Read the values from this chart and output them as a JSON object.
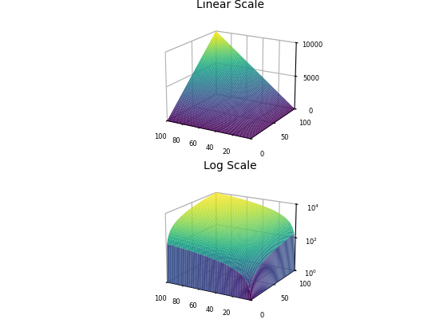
{
  "title1": "Linear Scale",
  "title2": "Log Scale",
  "x_range": [
    0,
    100
  ],
  "y_range": [
    0,
    100
  ],
  "n_points": 60,
  "colormap": "plasma",
  "background_color": "white",
  "elev1": 18,
  "azim1": -60,
  "elev2": 18,
  "azim2": -60,
  "figsize": [
    5.6,
    4.2
  ],
  "dpi": 100,
  "xticks": [
    0,
    20,
    40,
    60,
    80,
    100
  ],
  "yticks": [
    0,
    50,
    100
  ],
  "zticks_linear": [
    0,
    5000,
    10000
  ],
  "ztick_labels_linear": [
    "0",
    "5000",
    "10000"
  ],
  "zticks_log": [
    0,
    2,
    4
  ],
  "ztick_labels_log": [
    "$10^0$",
    "$10^2$",
    "$10^4$"
  ]
}
